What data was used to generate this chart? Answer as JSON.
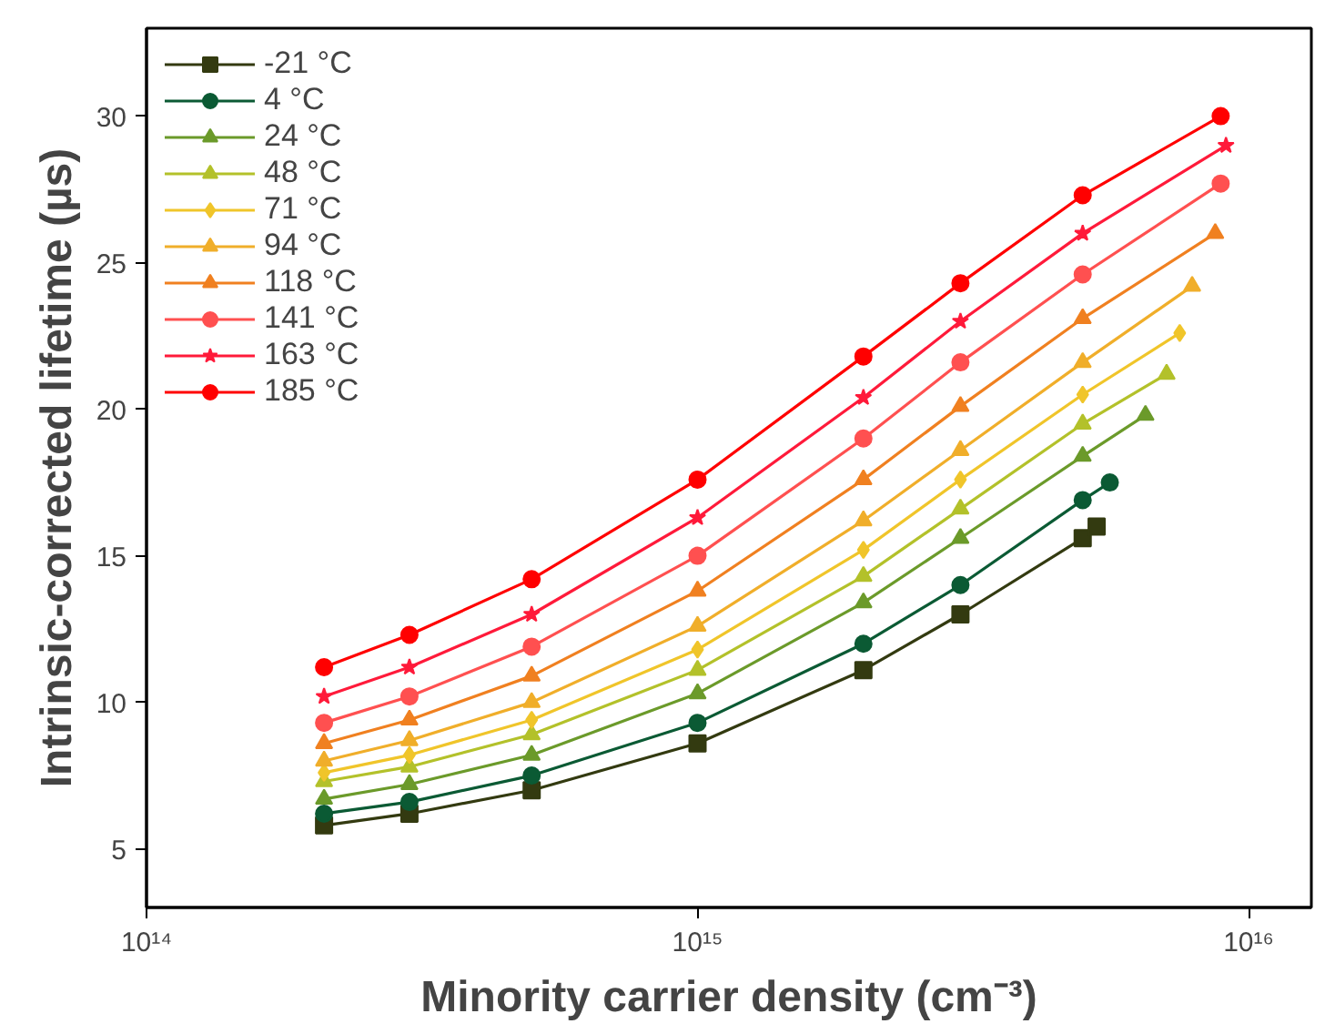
{
  "chart_data": {
    "type": "line",
    "xlabel": "Minority carrier density (cm⁻³)",
    "ylabel": "Intrinsic-corrected lifetime (µs)",
    "log": "x",
    "grid": false,
    "legend": "top left",
    "line_style": "solid",
    "xlim": [
      100000000000000.0,
      1.3e+16
    ],
    "ylim": [
      3,
      33
    ],
    "xticks": [
      {
        "value": 100000000000000.0,
        "label": "10¹⁴"
      },
      {
        "value": 1000000000000000.0,
        "label": "10¹⁵"
      },
      {
        "value": 1e+16,
        "label": "10¹⁶"
      }
    ],
    "yticks": [
      5,
      10,
      15,
      20,
      25,
      30
    ],
    "series": [
      {
        "name": "-21 °C",
        "color": "#333a10",
        "marker": "square",
        "x": [
          210000000000000.0,
          300000000000000.0,
          500000000000000.0,
          1000000000000000.0,
          2000000000000000.0,
          3000000000000000.0,
          5000000000000000.0,
          5300000000000000.0
        ],
        "values": [
          5.8,
          6.2,
          7.0,
          8.6,
          11.1,
          13.0,
          15.6,
          16.0
        ]
      },
      {
        "name": "4 °C",
        "color": "#0b5a34",
        "marker": "circle",
        "x": [
          210000000000000.0,
          300000000000000.0,
          500000000000000.0,
          1000000000000000.0,
          2000000000000000.0,
          3000000000000000.0,
          5000000000000000.0,
          5600000000000000.0
        ],
        "values": [
          6.2,
          6.6,
          7.5,
          9.3,
          12.0,
          14.0,
          16.9,
          17.5
        ]
      },
      {
        "name": "24 °C",
        "color": "#6b9a2a",
        "marker": "triangle",
        "x": [
          210000000000000.0,
          300000000000000.0,
          500000000000000.0,
          1000000000000000.0,
          2000000000000000.0,
          3000000000000000.0,
          5000000000000000.0,
          6500000000000000.0
        ],
        "values": [
          6.7,
          7.2,
          8.2,
          10.3,
          13.4,
          15.6,
          18.4,
          19.8
        ]
      },
      {
        "name": "48 °C",
        "color": "#b3c12a",
        "marker": "triangle",
        "x": [
          210000000000000.0,
          300000000000000.0,
          500000000000000.0,
          1000000000000000.0,
          2000000000000000.0,
          3000000000000000.0,
          5000000000000000.0,
          7100000000000000.0
        ],
        "values": [
          7.3,
          7.8,
          8.9,
          11.1,
          14.3,
          16.6,
          19.5,
          21.2
        ]
      },
      {
        "name": "71 °C",
        "color": "#f0c52a",
        "marker": "diamond",
        "x": [
          210000000000000.0,
          300000000000000.0,
          500000000000000.0,
          1000000000000000.0,
          2000000000000000.0,
          3000000000000000.0,
          5000000000000000.0,
          7500000000000000.0
        ],
        "values": [
          7.6,
          8.2,
          9.4,
          11.8,
          15.2,
          17.6,
          20.5,
          22.6
        ]
      },
      {
        "name": "94 °C",
        "color": "#f0ae2a",
        "marker": "triangle",
        "x": [
          210000000000000.0,
          300000000000000.0,
          500000000000000.0,
          1000000000000000.0,
          2000000000000000.0,
          3000000000000000.0,
          5000000000000000.0,
          7900000000000000.0
        ],
        "values": [
          8.0,
          8.7,
          10.0,
          12.6,
          16.2,
          18.6,
          21.6,
          24.2
        ]
      },
      {
        "name": "118 °C",
        "color": "#f08020",
        "marker": "triangle",
        "x": [
          210000000000000.0,
          300000000000000.0,
          500000000000000.0,
          1000000000000000.0,
          2000000000000000.0,
          3000000000000000.0,
          5000000000000000.0,
          8700000000000000.0
        ],
        "values": [
          8.6,
          9.4,
          10.9,
          13.8,
          17.6,
          20.1,
          23.1,
          26.0
        ]
      },
      {
        "name": "141 °C",
        "color": "#ff5050",
        "marker": "circle",
        "x": [
          210000000000000.0,
          300000000000000.0,
          500000000000000.0,
          1000000000000000.0,
          2000000000000000.0,
          3000000000000000.0,
          5000000000000000.0,
          8900000000000000.0
        ],
        "values": [
          9.3,
          10.2,
          11.9,
          15.0,
          19.0,
          21.6,
          24.6,
          27.7
        ]
      },
      {
        "name": "163 °C",
        "color": "#ff1a3a",
        "marker": "star",
        "x": [
          210000000000000.0,
          300000000000000.0,
          500000000000000.0,
          1000000000000000.0,
          2000000000000000.0,
          3000000000000000.0,
          5000000000000000.0,
          9100000000000000.0
        ],
        "values": [
          10.2,
          11.2,
          13.0,
          16.3,
          20.4,
          23.0,
          26.0,
          29.0
        ]
      },
      {
        "name": "185 °C",
        "color": "#ff0000",
        "marker": "circle",
        "x": [
          210000000000000.0,
          300000000000000.0,
          500000000000000.0,
          1000000000000000.0,
          2000000000000000.0,
          3000000000000000.0,
          5000000000000000.0,
          8900000000000000.0
        ],
        "values": [
          11.2,
          12.3,
          14.2,
          17.6,
          21.8,
          24.3,
          27.3,
          30.0
        ]
      }
    ]
  }
}
